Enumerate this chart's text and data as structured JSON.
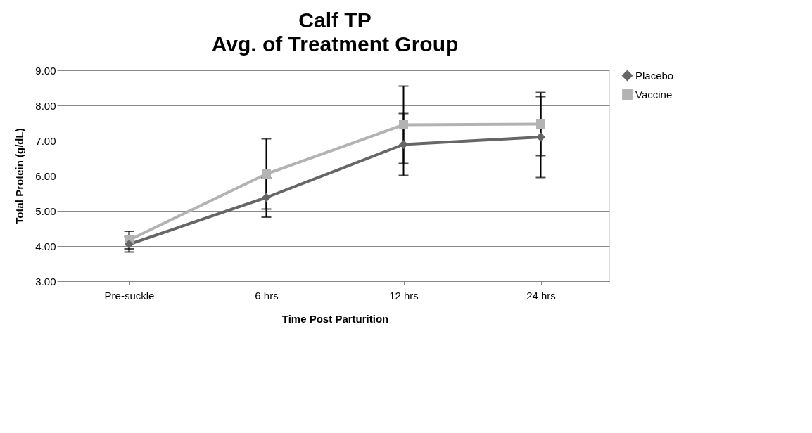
{
  "chart_data": {
    "type": "line",
    "title": "Calf TP",
    "subtitle": "Avg. of Treatment Group",
    "xlabel": "Time Post Parturition",
    "ylabel": "Total Protein (g/dL)",
    "categories": [
      "Pre-suckle",
      "6 hrs",
      "12 hrs",
      "24 hrs"
    ],
    "series": [
      {
        "name": "Placebo",
        "color": "#666666",
        "marker": "diamond",
        "values": [
          4.05,
          5.38,
          6.89,
          7.1
        ],
        "errors": [
          0.22,
          0.56,
          0.88,
          1.15
        ]
      },
      {
        "name": "Vaccine",
        "color": "#b3b3b3",
        "marker": "square",
        "values": [
          4.17,
          6.05,
          7.45,
          7.47
        ],
        "errors": [
          0.25,
          1.0,
          1.1,
          0.9
        ]
      }
    ],
    "ylim": [
      3,
      9
    ],
    "yticks": [
      {
        "value": 3,
        "label": "3.00"
      },
      {
        "value": 4,
        "label": "4.00"
      },
      {
        "value": 5,
        "label": "5.00"
      },
      {
        "value": 6,
        "label": "6.00"
      },
      {
        "value": 7,
        "label": "7.00"
      },
      {
        "value": 8,
        "label": "8.00"
      },
      {
        "value": 9,
        "label": "9.00"
      }
    ],
    "grid": "y",
    "legend": "right",
    "line_style": "solid"
  }
}
